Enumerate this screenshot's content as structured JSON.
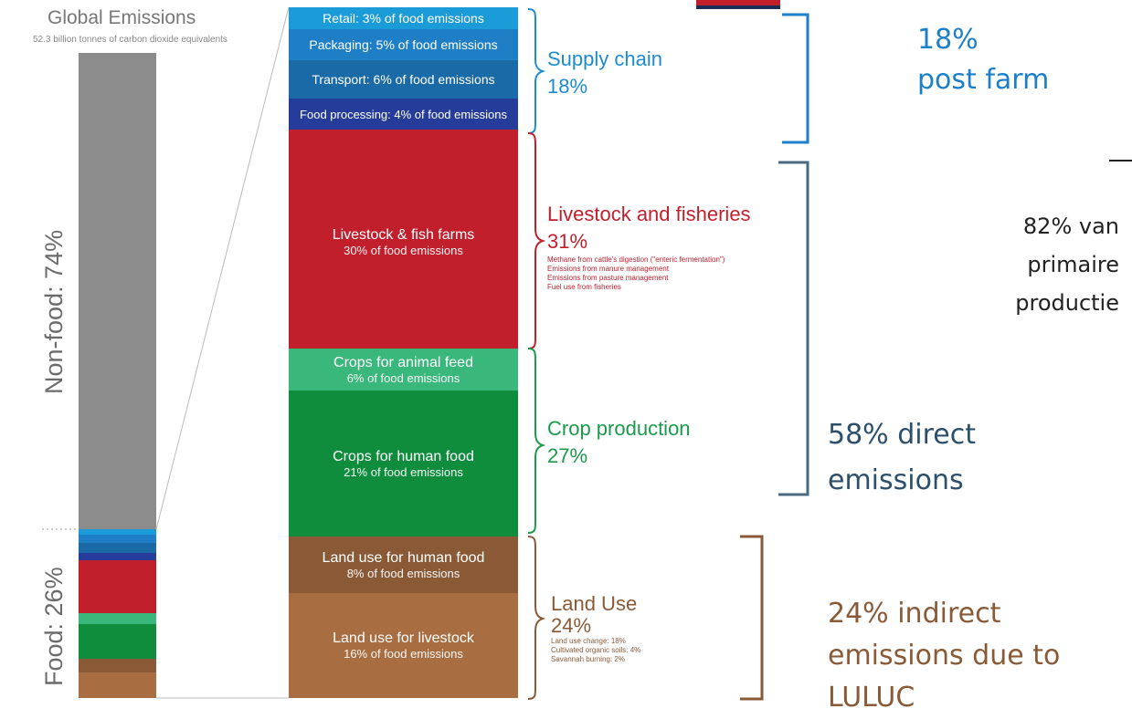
{
  "chart_data": {
    "type": "bar",
    "title": "Global Emissions",
    "subtitle": "52.3 billion tonnes of carbon dioxide equivalents",
    "overall": [
      {
        "label": "Non-food: 74%",
        "value": 74,
        "color": "#8c8c8c"
      },
      {
        "label": "Food: 26%",
        "value": 26
      }
    ],
    "food_breakdown": [
      {
        "label": "Retail: 3% of food emissions",
        "value": 3,
        "color": "#1b9bd7"
      },
      {
        "label": "Packaging: 5% of food emissions",
        "value": 5,
        "color": "#1f7fc6"
      },
      {
        "label": "Transport: 6% of food emissions",
        "value": 6,
        "color": "#1a6aa8"
      },
      {
        "label": "Food processing: 4% of food emissions",
        "value": 4,
        "color": "#253c9a"
      },
      {
        "label": "",
        "value": 1,
        "color": "#c11f2c"
      },
      {
        "name": "Livestock & fish farms",
        "sub": "30% of food emissions",
        "value": 30,
        "color": "#c11f2c"
      },
      {
        "name": "Crops for animal feed",
        "sub": "6% of food emissions",
        "value": 6,
        "color": "#3ab77a"
      },
      {
        "name": "Crops for human food",
        "sub": "21% of food emissions",
        "value": 21,
        "color": "#0f8d3d"
      },
      {
        "name": "Land use for human food",
        "sub": "8% of food emissions",
        "value": 8,
        "color": "#8a5a36"
      },
      {
        "name": "Land use for livestock",
        "sub": "16% of food emissions",
        "value": 16,
        "color": "#a86d40"
      }
    ],
    "categories": [
      {
        "name": "Supply chain",
        "pct": "18%",
        "color": "#1c8bd0"
      },
      {
        "name": "Livestock and fisheries",
        "pct": "31%",
        "color": "#c11f2c",
        "details": [
          "Methane from cattle's digestion (\"enteric fermentation\")",
          "Emissions from manure management",
          "Emissions from pasture management",
          "Fuel use from fisheries"
        ]
      },
      {
        "name": "Crop production",
        "pct": "27%",
        "color": "#1a9a4a"
      },
      {
        "name": "Land Use",
        "pct": "24%",
        "color": "#8a5a36",
        "details": [
          "Land use change: 18%",
          "Cultivated organic soils: 4%",
          "Savannah burning: 2%"
        ]
      }
    ]
  },
  "annotations": {
    "post_farm": {
      "line1": "18%",
      "line2": "post farm",
      "color": "#1c7fc8"
    },
    "direct": {
      "line1": "58% direct",
      "line2": "emissions",
      "color": "#2c4f6b"
    },
    "indirect": {
      "line1": "24% indirect",
      "line2": "emissions due to",
      "line3": "LULUC",
      "color": "#8a5a36"
    },
    "primary": {
      "line1": "82% van",
      "line2": "primaire",
      "line3": "productie"
    }
  }
}
